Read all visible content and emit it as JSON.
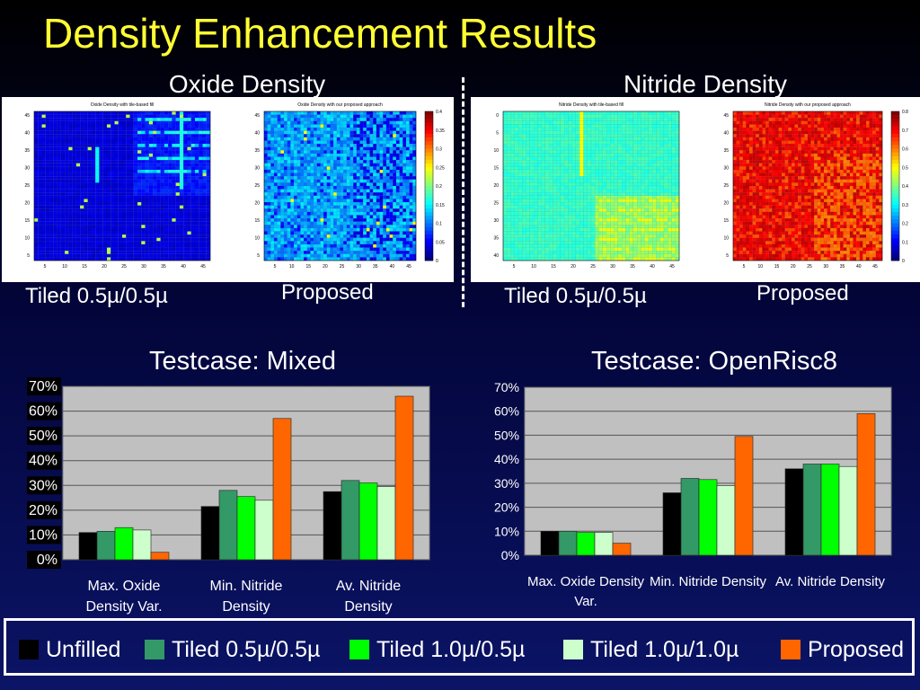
{
  "slide": {
    "title": "Density Enhancement Results",
    "oxide_header": "Oxide Density",
    "nitride_header": "Nitride Density"
  },
  "heatmaps": {
    "oxide_tiled": {
      "caption": "Tiled 0.5µ/0.5µ",
      "plot_title": "Oxide Density with tile-based fill",
      "yticks": [
        "45",
        "40",
        "35",
        "30",
        "25",
        "20",
        "15",
        "10",
        "5"
      ],
      "xticks": [
        "5",
        "10",
        "15",
        "20",
        "25",
        "30",
        "35",
        "40",
        "45"
      ]
    },
    "oxide_proposed": {
      "caption": "Proposed",
      "plot_title": "Oxide Density with our proposed approach",
      "yticks": [
        "45",
        "40",
        "35",
        "30",
        "25",
        "20",
        "15",
        "10",
        "5"
      ],
      "xticks": [
        "5",
        "10",
        "15",
        "20",
        "25",
        "30",
        "35",
        "40",
        "45"
      ],
      "colorbar": [
        "0.4",
        "0.35",
        "0.3",
        "0.25",
        "0.2",
        "0.15",
        "0.1",
        "0.05",
        "0"
      ]
    },
    "nitride_tiled": {
      "caption": "Tiled 0.5µ/0.5µ",
      "plot_title": "Nitride Density with tile-based fill",
      "yticks": [
        "0",
        "5",
        "10",
        "15",
        "20",
        "25",
        "30",
        "35",
        "40"
      ],
      "xticks": [
        "5",
        "10",
        "15",
        "20",
        "25",
        "30",
        "35",
        "40",
        "45"
      ]
    },
    "nitride_proposed": {
      "caption": "Proposed",
      "plot_title": "Nitride Density with our proposed approach",
      "yticks": [
        "45",
        "40",
        "35",
        "30",
        "25",
        "20",
        "15",
        "10",
        "5"
      ],
      "xticks": [
        "5",
        "10",
        "15",
        "20",
        "25",
        "30",
        "35",
        "40",
        "45"
      ],
      "colorbar": [
        "0.8",
        "0.7",
        "0.6",
        "0.5",
        "0.4",
        "0.3",
        "0.2",
        "0.1",
        "0"
      ]
    }
  },
  "legend": [
    {
      "label": "Unfilled",
      "color": "#000000"
    },
    {
      "label": "Tiled 0.5µ/0.5µ",
      "color": "#339966"
    },
    {
      "label": "Tiled 1.0µ/0.5µ",
      "color": "#00ff00"
    },
    {
      "label": "Tiled 1.0µ/1.0µ",
      "color": "#ccffcc"
    },
    {
      "label": "Proposed",
      "color": "#ff6600"
    }
  ],
  "chart_data": [
    {
      "type": "bar",
      "title": "Testcase: Mixed",
      "categories": [
        "Max. Oxide Density Var.",
        "Min. Nitride Density",
        "Av. Nitride Density"
      ],
      "category_lines": [
        [
          "Max. Oxide",
          "Density Var."
        ],
        [
          "Min. Nitride",
          "Density"
        ],
        [
          "Av. Nitride",
          "Density"
        ]
      ],
      "yticks": [
        "0%",
        "10%",
        "20%",
        "30%",
        "40%",
        "50%",
        "60%",
        "70%"
      ],
      "ylim": [
        0,
        70
      ],
      "grid": true,
      "series": [
        {
          "name": "Unfilled",
          "values": [
            11,
            21.5,
            27.5
          ]
        },
        {
          "name": "Tiled 0.5µ/0.5µ",
          "values": [
            11.5,
            28,
            32
          ]
        },
        {
          "name": "Tiled 1.0µ/0.5µ",
          "values": [
            13,
            25.5,
            31
          ]
        },
        {
          "name": "Tiled 1.0µ/1.0µ",
          "values": [
            12,
            24,
            29.5
          ]
        },
        {
          "name": "Proposed",
          "values": [
            3,
            57,
            66
          ]
        }
      ]
    },
    {
      "type": "bar",
      "title": "Testcase: OpenRisc8",
      "categories": [
        "Max. Oxide Density Var.",
        "Min. Nitride Density",
        "Av. Nitride Density"
      ],
      "category_lines": [
        [
          "Max. Oxide Density",
          "Var."
        ],
        [
          "Min. Nitride Density"
        ],
        [
          "Av. Nitride Density"
        ]
      ],
      "yticks": [
        "0%",
        "10%",
        "20%",
        "30%",
        "40%",
        "50%",
        "60%",
        "70%"
      ],
      "ylim": [
        0,
        70
      ],
      "grid": true,
      "series": [
        {
          "name": "Unfilled",
          "values": [
            10,
            26,
            36
          ]
        },
        {
          "name": "Tiled 0.5µ/0.5µ",
          "values": [
            10,
            32,
            38
          ]
        },
        {
          "name": "Tiled 1.0µ/0.5µ",
          "values": [
            9.5,
            31.5,
            38
          ]
        },
        {
          "name": "Tiled 1.0µ/1.0µ",
          "values": [
            9.5,
            29,
            37
          ]
        },
        {
          "name": "Proposed",
          "values": [
            5,
            49.5,
            59
          ]
        }
      ]
    }
  ]
}
